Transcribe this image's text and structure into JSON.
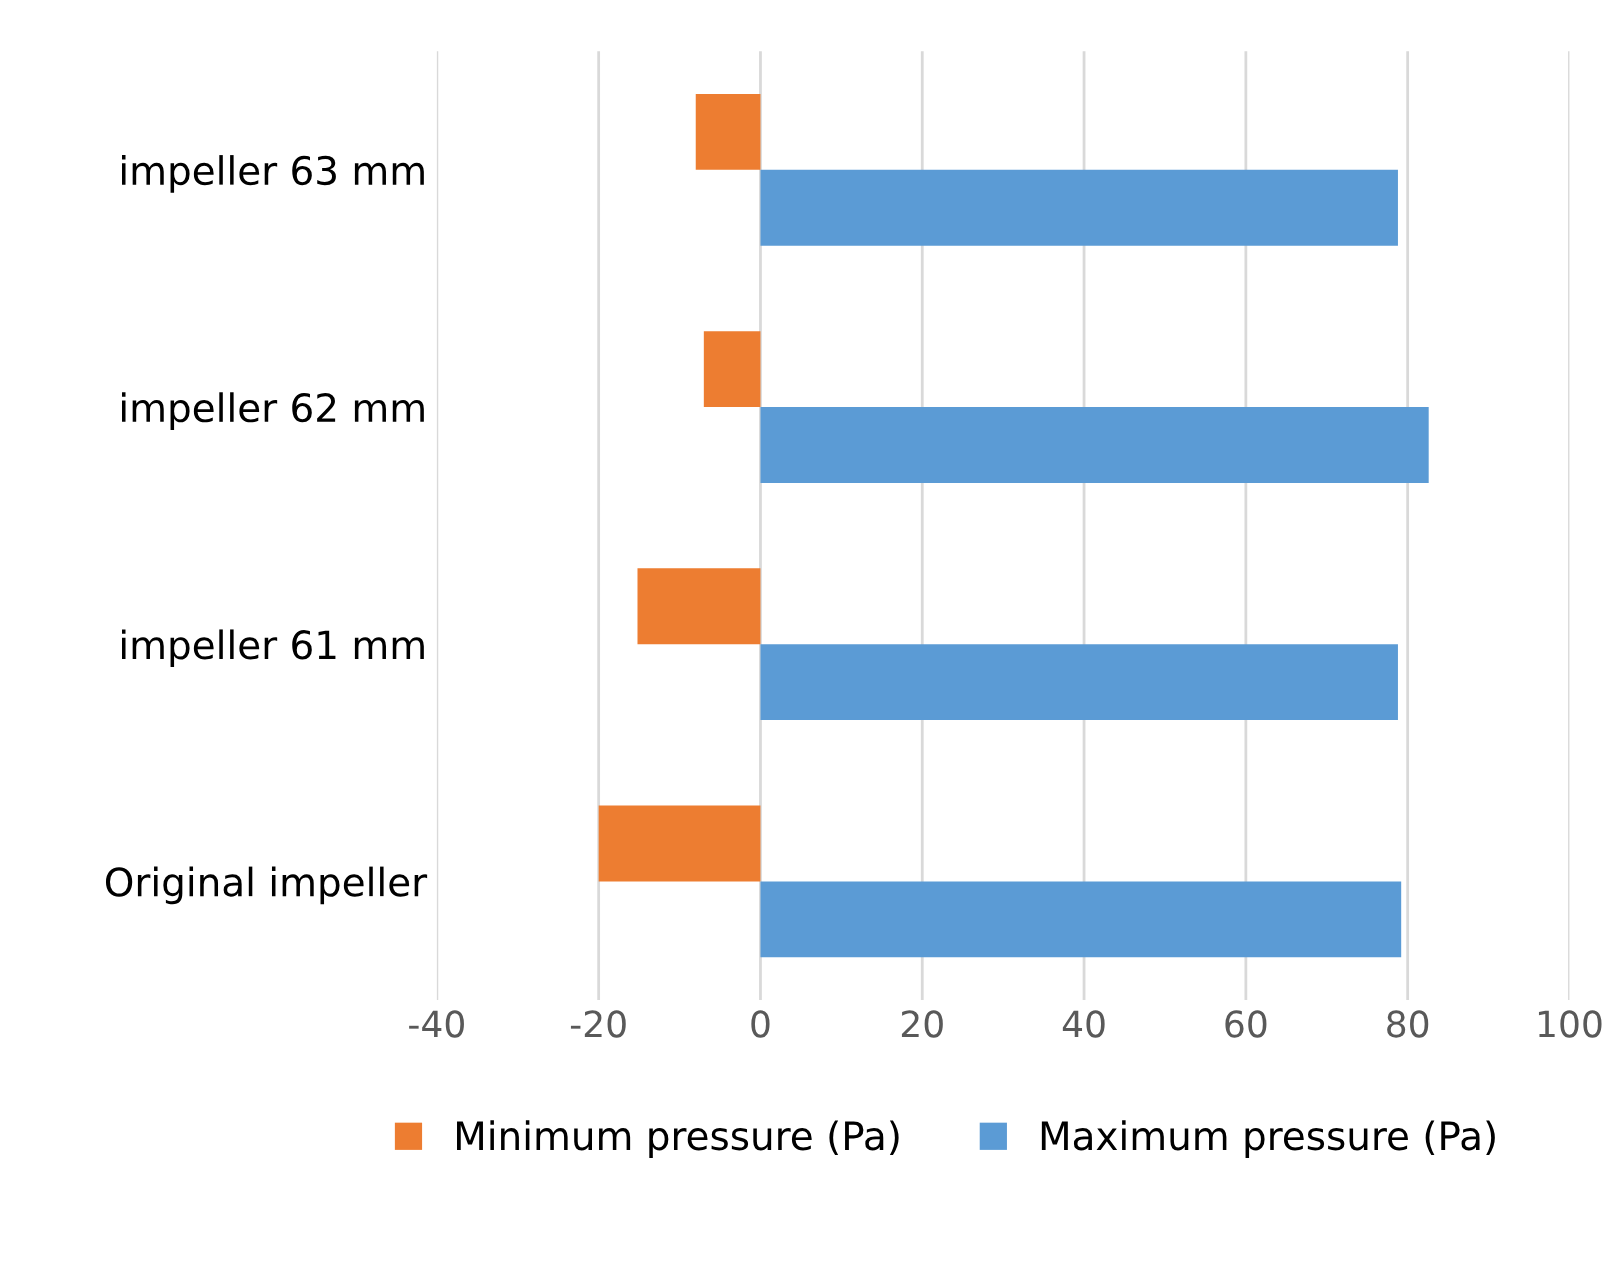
{
  "chart_data": {
    "type": "bar",
    "orientation": "horizontal",
    "categories": [
      "impeller 63 mm",
      "impeller 62 mm",
      "impeller 61 mm",
      "Original impeller"
    ],
    "series": [
      {
        "name": "Minimum pressure (Pa)",
        "color": "#ed7d31",
        "values": [
          -8,
          -7,
          -15.2,
          -20
        ]
      },
      {
        "name": "Maximum pressure (Pa)",
        "color": "#5b9bd5",
        "values": [
          78.8,
          82.6,
          78.8,
          79.2
        ]
      }
    ],
    "xlim": [
      -40,
      100
    ],
    "xticks": [
      -40,
      -20,
      0,
      20,
      40,
      60,
      80,
      100
    ],
    "grid": "x",
    "legend": "bottom"
  }
}
